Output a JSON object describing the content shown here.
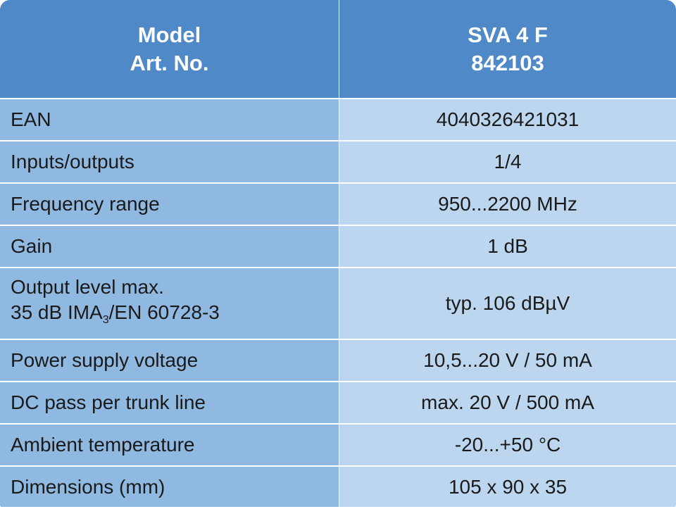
{
  "table": {
    "header": [
      [
        "Model",
        "Art. No."
      ],
      [
        "SVA 4 F",
        "842103"
      ]
    ],
    "rows": [
      {
        "label": "EAN",
        "value": "4040326421031"
      },
      {
        "label": "Inputs/outputs",
        "value": "1/4"
      },
      {
        "label": "Frequency range",
        "value": "950...2200 MHz"
      },
      {
        "label": "Gain",
        "value": "1 dB"
      },
      {
        "label": {
          "line1": "Output level max.",
          "line2": {
            "text": "35 dB IMA",
            "sub": "3",
            "rest": "/EN 60728-3"
          }
        },
        "value": "typ. 106 dBµV"
      },
      {
        "label": "Power supply voltage",
        "value": "10,5...20 V / 50 mA"
      },
      {
        "label": "DC pass per trunk line",
        "value": "max. 20 V / 500 mA"
      },
      {
        "label": "Ambient temperature",
        "value": "-20...+50 °C"
      },
      {
        "label": "Dimensions (mm)",
        "value": "105 x 90 x 35"
      }
    ]
  }
}
